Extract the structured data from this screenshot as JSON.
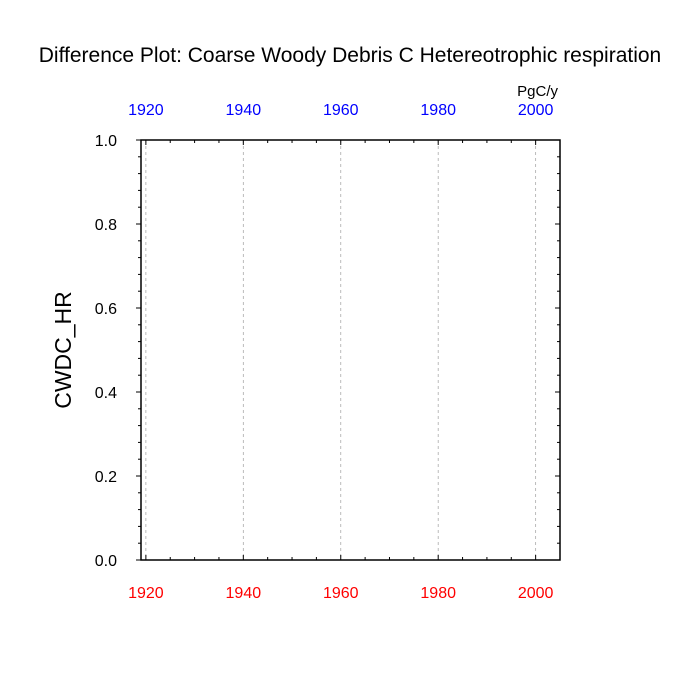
{
  "chart_data": {
    "type": "line",
    "title": "Difference Plot: Coarse Woody Debris C Hetereotrophic respiration",
    "ylabel": "CWDC_HR",
    "units": "PgC/y",
    "xlim": [
      1919,
      2005
    ],
    "ylim": [
      0,
      1.0
    ],
    "xticks_bottom": [
      "1920",
      "1940",
      "1960",
      "1980",
      "2000"
    ],
    "xticks_top": [
      "1920",
      "1940",
      "1960",
      "1980",
      "2000"
    ],
    "yticks": [
      "0.0",
      "0.2",
      "0.4",
      "0.6",
      "0.8",
      "1.0"
    ],
    "grid": "vertical dashed",
    "series": [],
    "colors": {
      "bottom_axis": "#ff0000",
      "top_axis": "#0000ff",
      "grid": "#aaaaaa",
      "frame": "#000000"
    }
  }
}
